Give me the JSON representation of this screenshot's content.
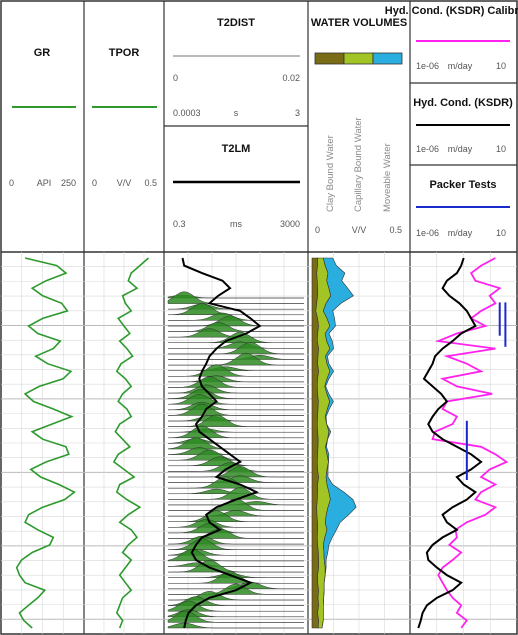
{
  "chart_data": {
    "type": "line",
    "tracks": [
      {
        "id": "gr",
        "title": "GR",
        "unit": "API",
        "min": "0",
        "max": "250",
        "color": "#2e9a2e",
        "values": [
          30,
          75,
          88,
          60,
          40,
          55,
          82,
          90,
          55,
          35,
          48,
          80,
          70,
          45,
          62,
          95,
          84,
          50,
          30,
          42,
          70,
          96,
          68,
          40,
          55,
          88,
          92,
          60,
          38,
          52,
          78,
          100,
          86,
          55,
          35,
          30,
          48,
          70,
          65,
          40,
          25,
          18,
          22,
          30,
          58,
          48,
          35,
          22,
          28,
          40
        ]
      },
      {
        "id": "tpor",
        "title": "TPOR",
        "unit": "V/V",
        "min": "0",
        "max": "0.5",
        "color": "#2e9a2e",
        "values": [
          0.42,
          0.36,
          0.3,
          0.28,
          0.34,
          0.24,
          0.26,
          0.3,
          0.21,
          0.25,
          0.29,
          0.22,
          0.27,
          0.31,
          0.23,
          0.2,
          0.26,
          0.3,
          0.24,
          0.21,
          0.27,
          0.3,
          0.22,
          0.19,
          0.24,
          0.29,
          0.21,
          0.18,
          0.25,
          0.32,
          0.22,
          0.2,
          0.27,
          0.36,
          0.28,
          0.22,
          0.3,
          0.34,
          0.28,
          0.24,
          0.3,
          0.26,
          0.22,
          0.26,
          0.3,
          0.24,
          0.22,
          0.2,
          0.24,
          0.22
        ]
      },
      {
        "id": "t2lm",
        "title": "T2LM",
        "unit": "ms",
        "min": "0.3",
        "max": "3000",
        "color": "#000000",
        "values": [
          0.8,
          0.9,
          3,
          12,
          20,
          9,
          5,
          40,
          80,
          150,
          60,
          15,
          8,
          5,
          4,
          3,
          2.5,
          3,
          5,
          8,
          4,
          3,
          2,
          2.5,
          5,
          10,
          20,
          40,
          15,
          8,
          40,
          120,
          30,
          8,
          4,
          5,
          10,
          3,
          2,
          1.5,
          2,
          5,
          20,
          80,
          30,
          5,
          2,
          1.2,
          1,
          0.9
        ]
      },
      {
        "id": "water",
        "title": "WATER VOLUMES",
        "unit": "V/V",
        "min": "0",
        "max": "0.5",
        "colors": {
          "clay": "#7a6b16",
          "capillary": "#a2c424",
          "moveable": "#2aaee0"
        },
        "clay": [
          0.03,
          0.03,
          0.025,
          0.028,
          0.03,
          0.03,
          0.025,
          0.02,
          0.03,
          0.035,
          0.03,
          0.028,
          0.035,
          0.032,
          0.03,
          0.035,
          0.03,
          0.028,
          0.03,
          0.034,
          0.032,
          0.03,
          0.028,
          0.03,
          0.033,
          0.032,
          0.03,
          0.028,
          0.03,
          0.035,
          0.03,
          0.03,
          0.028,
          0.025,
          0.026,
          0.03,
          0.03,
          0.028,
          0.03,
          0.034,
          0.035,
          0.035,
          0.03,
          0.03,
          0.035,
          0.032,
          0.035,
          0.03,
          0.035,
          0.033
        ],
        "capillary": [
          0.03,
          0.04,
          0.06,
          0.05,
          0.06,
          0.07,
          0.05,
          0.04,
          0.05,
          0.06,
          0.04,
          0.05,
          0.06,
          0.04,
          0.05,
          0.06,
          0.05,
          0.04,
          0.05,
          0.06,
          0.05,
          0.04,
          0.05,
          0.06,
          0.05,
          0.04,
          0.05,
          0.06,
          0.05,
          0.04,
          0.05,
          0.06,
          0.07,
          0.06,
          0.05,
          0.04,
          0.05,
          0.04,
          0.03,
          0.03,
          0.03,
          0.035,
          0.04,
          0.035,
          0.03,
          0.03,
          0.025,
          0.03,
          0.025,
          0.02
        ],
        "moveable": [
          0.05,
          0.06,
          0.09,
          0.08,
          0.1,
          0.12,
          0.08,
          0.05,
          0.04,
          0.03,
          0.02,
          0.03,
          0.02,
          0.01,
          0.01,
          0.02,
          0.01,
          0.005,
          0.01,
          0.02,
          0.01,
          0.005,
          0.0,
          0.01,
          0.0,
          0.005,
          0.01,
          0.0,
          0.005,
          0.01,
          0.03,
          0.08,
          0.12,
          0.15,
          0.12,
          0.08,
          0.05,
          0.04,
          0.03,
          0.02,
          0.01,
          0.005,
          0.0,
          0.0,
          0.0,
          0.0,
          0.0,
          0.0,
          0.0,
          0.0
        ]
      },
      {
        "id": "hyd",
        "unit": "m/day",
        "min": "1e-06",
        "max": "10",
        "calibrated": [
          0.5,
          0.05,
          0.01,
          0.02,
          1,
          0.2,
          0.5,
          0.05,
          0.01,
          0.1,
          0.001,
          5e-05,
          0.5,
          0.0002,
          0.005,
          0.05,
          0.0001,
          0.001,
          0.3,
          0.0002,
          0.0001,
          0.001,
          0.0005,
          3e-05,
          2e-05,
          0.05,
          0.5,
          3,
          0.2,
          0.05,
          0.5,
          0.05,
          0.02,
          0.5,
          0.1,
          0.005,
          0.0008,
          0.001,
          0.0003,
          0.002,
          0.0005,
          0.0001,
          5e-05,
          0.0001,
          0.0002,
          0.0005,
          0.002,
          0.001,
          0.005,
          0.002
        ],
        "ksdr": [
          0.003,
          0.002,
          0.001,
          0.0002,
          0.0001,
          0.0003,
          0.0015,
          0.005,
          0.01,
          0.02,
          0.002,
          0.0005,
          0.0001,
          3e-05,
          2e-05,
          1e-05,
          5e-06,
          2e-05,
          8e-05,
          0.0002,
          5e-05,
          2e-05,
          1e-05,
          2e-05,
          0.0001,
          0.001,
          0.01,
          0.05,
          0.01,
          0.001,
          0.003,
          0.02,
          0.005,
          0.0005,
          0.0001,
          0.0002,
          0.001,
          0.0001,
          2e-05,
          8e-06,
          1e-05,
          4e-05,
          0.0002,
          0.002,
          0.0005,
          4e-05,
          8e-06,
          4e-06,
          3e-06,
          2e-06
        ],
        "packer": [
          {
            "x": 1.0,
            "top": 0.12,
            "bottom": 0.21
          },
          {
            "x": 2.5,
            "top": 0.12,
            "bottom": 0.24
          },
          {
            "x": 0.005,
            "top": 0.44,
            "bottom": 0.6
          }
        ]
      }
    ],
    "t2dist": {
      "title": "T2DIST",
      "min": "0",
      "max": "0.02",
      "axis_min": "0.0003",
      "unit": "s",
      "axis_max": "3",
      "color": "#2e8a22"
    },
    "legends": {
      "hyd_calibrated": {
        "title": "Hyd. Cond. (KSDR) Calibrated",
        "color": "#ff22ee"
      },
      "hyd_ksdr": {
        "title": "Hyd. Cond. (KSDR)",
        "color": "#000000"
      },
      "packer": {
        "title": "Packer Tests",
        "color": "#1a2acc"
      }
    },
    "water_labels": [
      "Clay Bound Water",
      "Capillary Bound Water",
      "Moveable Water"
    ]
  }
}
